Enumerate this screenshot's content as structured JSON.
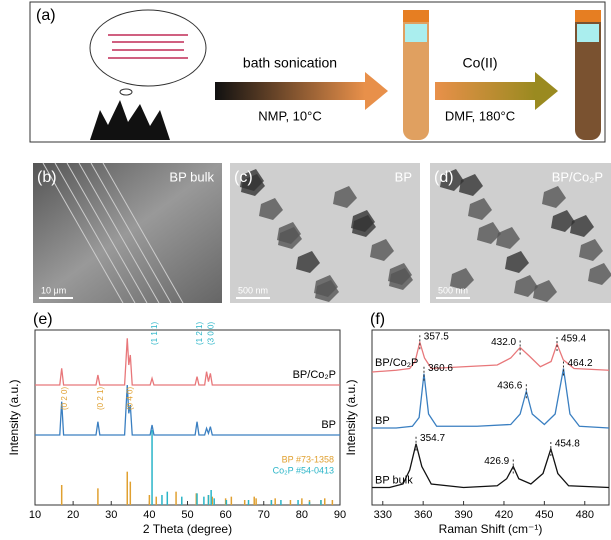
{
  "panel_a": {
    "label": "(a)",
    "step1_top": "bath sonication",
    "step1_bottom": "NMP, 10°C",
    "step2_top": "Co(II)",
    "step2_bottom": "DMF, 180°C"
  },
  "images": [
    {
      "label": "(b)",
      "caption": "BP bulk",
      "scale": "10 μm"
    },
    {
      "label": "(c)",
      "caption": "BP",
      "scale": "500 nm"
    },
    {
      "label": "(d)",
      "caption": "BP/Co₂P",
      "scale": "500 nm"
    }
  ],
  "chart_data": [
    {
      "type": "line",
      "panel": "(e)",
      "x_label": "2 Theta (degree)",
      "y_label": "Intensity (a.u.)",
      "xlim": [
        10,
        90
      ],
      "ylim": [
        0,
        105
      ],
      "xticks": [
        10,
        20,
        30,
        40,
        50,
        60,
        70,
        80,
        90
      ],
      "series": [
        {
          "name": "BP/Co₂P",
          "color": "#e8777a",
          "x": [
            10,
            16.5,
            17,
            17.5,
            26,
            26.5,
            27,
            33.5,
            34.2,
            34.6,
            35,
            35.5,
            40.2,
            40.7,
            41.2,
            52,
            52.5,
            53,
            54.5,
            55,
            55.5,
            56,
            56.5,
            57,
            90
          ],
          "values": [
            72,
            72,
            82,
            72,
            72,
            78,
            72,
            72,
            100,
            84,
            90,
            72,
            72,
            76,
            72,
            72,
            77,
            72,
            72,
            80,
            74,
            79,
            72,
            72,
            72
          ]
        },
        {
          "name": "BP",
          "color": "#3a7fc1",
          "x": [
            10,
            16.5,
            17,
            17.5,
            26,
            26.5,
            27,
            33.5,
            34.2,
            34.6,
            35,
            35.5,
            40.2,
            40.7,
            41.2,
            52,
            52.5,
            53,
            54.5,
            55,
            55.5,
            56,
            56.5,
            57,
            90
          ],
          "values": [
            42,
            42,
            62,
            42,
            42,
            50,
            42,
            42,
            72,
            55,
            60,
            42,
            42,
            48,
            42,
            42,
            50,
            42,
            42,
            46,
            43,
            47,
            42,
            42,
            42
          ]
        }
      ],
      "references": [
        {
          "name": "BP #73-1358",
          "color": "#e0a030",
          "x": [
            17,
            26.5,
            34.2,
            35,
            40,
            41.8,
            47,
            48.5,
            52.3,
            55.5,
            56.5,
            60,
            61.5,
            65,
            67.5,
            68,
            72,
            73,
            77,
            80,
            82,
            85,
            86,
            88
          ],
          "values": [
            12,
            10,
            20,
            14,
            6,
            5,
            8,
            4,
            7,
            6,
            5,
            4,
            5,
            3,
            5,
            4,
            3,
            4,
            3,
            4,
            3,
            3,
            4,
            3
          ]
        },
        {
          "name": "Co₂P #54-0413",
          "color": "#2ab5c8",
          "x": [
            40.7,
            43.3,
            44.7,
            48.5,
            52.5,
            54.3,
            55.5,
            56.2,
            57,
            60.2,
            66,
            72,
            74.5,
            79,
            82,
            85
          ],
          "values": [
            45,
            6,
            8,
            5,
            7,
            5,
            6,
            9,
            4,
            3,
            3,
            3,
            3,
            3,
            2,
            3
          ]
        }
      ],
      "annotations": [
        {
          "text": "(0 2 0)",
          "x": 17,
          "color": "#e0a030"
        },
        {
          "text": "(0 2 1)",
          "x": 26.5,
          "color": "#e0a030"
        },
        {
          "text": "(0 4 0)",
          "x": 34.2,
          "color": "#e0a030"
        },
        {
          "text": "(1 1 1)",
          "x": 40.7,
          "color": "#2ab5c8"
        },
        {
          "text": "(1 2 1)",
          "x": 52.5,
          "color": "#2ab5c8"
        },
        {
          "text": "(3 0 0)",
          "x": 55.5,
          "color": "#2ab5c8"
        }
      ]
    },
    {
      "type": "line",
      "panel": "(f)",
      "x_label": "Raman Shift (cm⁻¹)",
      "y_label": "Intensity (a.u.)",
      "xlim": [
        322,
        498
      ],
      "ylim": [
        0,
        100
      ],
      "xticks": [
        330,
        360,
        390,
        420,
        450,
        480
      ],
      "series": [
        {
          "name": "BP/Co₂P",
          "color": "#e8777a",
          "x": [
            322,
            340,
            350,
            354,
            357.5,
            361,
            366,
            390,
            415,
            425,
            432,
            439,
            447,
            455,
            459.4,
            464,
            472,
            498
          ],
          "values": [
            76,
            77,
            78,
            82,
            93,
            84,
            78,
            79,
            80,
            84,
            90,
            85,
            79,
            82,
            92,
            83,
            78,
            77
          ],
          "peaks": [
            357.5,
            432.0,
            459.4
          ],
          "peak_labels": [
            "357.5",
            "432.0",
            "459.4"
          ]
        },
        {
          "name": "BP",
          "color": "#3a7fc1",
          "x": [
            322,
            340,
            352,
            357,
            360.6,
            364,
            370,
            400,
            425,
            432,
            436.6,
            441,
            450,
            458,
            464.2,
            469,
            476,
            498
          ],
          "values": [
            44,
            44,
            45,
            50,
            75,
            52,
            45,
            45,
            46,
            52,
            65,
            52,
            46,
            52,
            78,
            52,
            45,
            44
          ],
          "peaks": [
            360.6,
            436.6,
            464.2
          ],
          "peak_labels": [
            "360.6",
            "436.6",
            "464.2"
          ]
        },
        {
          "name": "BP bulk",
          "color": "#111111",
          "x": [
            322,
            335,
            345,
            350,
            354.7,
            359,
            366,
            390,
            415,
            422,
            426.9,
            431,
            440,
            449,
            454.8,
            460,
            468,
            498
          ],
          "values": [
            10,
            10,
            12,
            20,
            35,
            22,
            12,
            10,
            11,
            15,
            22,
            15,
            12,
            18,
            32,
            18,
            11,
            10
          ],
          "peaks": [
            354.7,
            426.9,
            454.8
          ],
          "peak_labels": [
            "354.7",
            "426.9",
            "454.8"
          ]
        }
      ]
    }
  ]
}
